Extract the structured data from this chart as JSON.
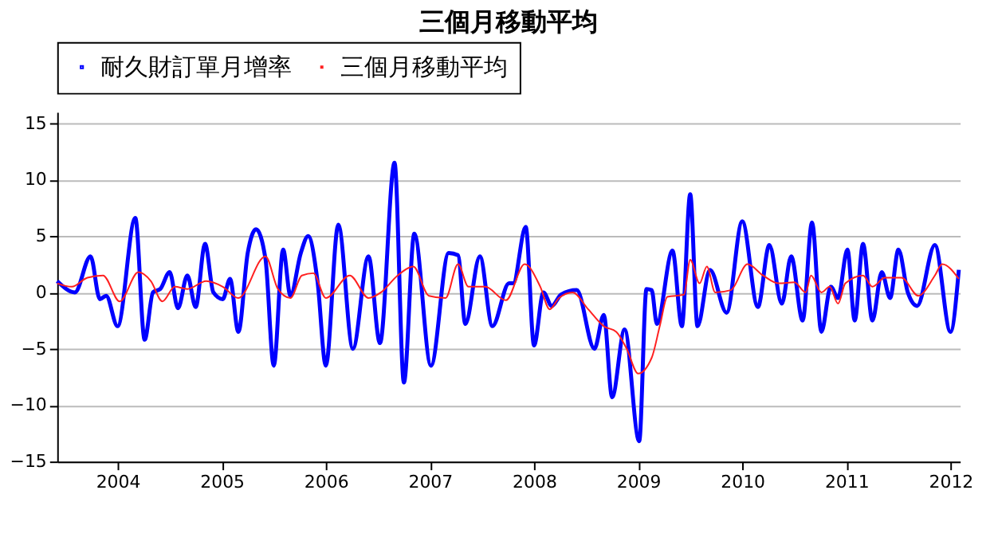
{
  "chart_data": {
    "type": "line",
    "title": "三個月移動平均",
    "legend": "top left",
    "grid": "y",
    "marker": "none",
    "line_style": "solid",
    "xlim": [
      2003.42,
      2012.09
    ],
    "xticks": [
      2004,
      2005,
      2006,
      2007,
      2008,
      2009,
      2010,
      2011,
      2012
    ],
    "ylim": [
      -15,
      16
    ],
    "yticks": [
      -15,
      -10,
      -5,
      0,
      5,
      10,
      15
    ],
    "series": [
      {
        "name": "耐久財訂單月增率",
        "color": "#0000ff",
        "x": [
          2003.42,
          2003.59,
          2003.74,
          2003.83,
          2003.89,
          2004.0,
          2004.17,
          2004.26,
          2004.34,
          2004.41,
          2004.5,
          2004.58,
          2004.67,
          2004.75,
          2004.84,
          2004.92,
          2005.01,
          2005.08,
          2005.16,
          2005.25,
          2005.33,
          2005.42,
          2005.5,
          2005.59,
          2005.66,
          2005.76,
          2005.83,
          2005.92,
          2006.0,
          2006.12,
          2006.26,
          2006.41,
          2006.52,
          2006.66,
          2006.75,
          2006.85,
          2007.01,
          2007.18,
          2007.27,
          2007.34,
          2007.48,
          2007.6,
          2007.76,
          2007.8,
          2007.92,
          2008.0,
          2008.09,
          2008.17,
          2008.26,
          2008.41,
          2008.58,
          2008.67,
          2008.75,
          2008.87,
          2009.01,
          2009.08,
          2009.13,
          2009.18,
          2009.33,
          2009.42,
          2009.5,
          2009.57,
          2009.69,
          2009.85,
          2010.0,
          2010.15,
          2010.26,
          2010.38,
          2010.47,
          2010.58,
          2010.67,
          2010.76,
          2010.85,
          2010.92,
          2011.01,
          2011.08,
          2011.16,
          2011.25,
          2011.34,
          2011.42,
          2011.5,
          2011.59,
          2011.68,
          2011.85,
          2012.0,
          2012.08
        ],
        "values": [
          1.0,
          0,
          3.2,
          -0.6,
          -0.3,
          -3,
          6.6,
          -4.2,
          0,
          0.3,
          1.8,
          -1.4,
          1.5,
          -1.3,
          4.3,
          0,
          -0.6,
          1.2,
          -3.5,
          3.5,
          5.6,
          3,
          -6.5,
          3.8,
          -0.3,
          3.5,
          5,
          1,
          -6.5,
          6,
          -5,
          3.2,
          -4.5,
          11.5,
          -8,
          5.2,
          -6.5,
          3.5,
          3.3,
          -2.8,
          3.2,
          -3,
          0.8,
          0.8,
          5.8,
          -4.7,
          0,
          -1.2,
          -0.2,
          0.2,
          -5,
          -2,
          -9.3,
          -3.3,
          -13.2,
          0.3,
          0.2,
          -2.8,
          3.7,
          -3,
          8.7,
          -3,
          2,
          -1.8,
          6.3,
          -1.3,
          4.2,
          -1,
          3.2,
          -2.5,
          6.2,
          -3.5,
          0.5,
          -0.5,
          3.8,
          -2.5,
          4.3,
          -2.5,
          1.8,
          -0.5,
          3.8,
          0,
          -1.2,
          4.2,
          -3.5,
          2
        ]
      },
      {
        "name": "三個月移動平均",
        "color": "#ff2020",
        "x": [
          2003.42,
          2003.56,
          2003.71,
          2003.86,
          2004.02,
          2004.2,
          2004.32,
          2004.43,
          2004.55,
          2004.67,
          2004.85,
          2005.01,
          2005.16,
          2005.42,
          2005.54,
          2005.66,
          2005.77,
          2005.88,
          2006.0,
          2006.23,
          2006.41,
          2006.53,
          2006.69,
          2006.84,
          2006.99,
          2007.15,
          2007.27,
          2007.37,
          2007.53,
          2007.73,
          2007.91,
          2008.06,
          2008.15,
          2008.24,
          2008.37,
          2008.52,
          2008.67,
          2008.79,
          2008.89,
          2009.0,
          2009.13,
          2009.21,
          2009.28,
          2009.44,
          2009.5,
          2009.59,
          2009.66,
          2009.74,
          2009.89,
          2010.05,
          2010.2,
          2010.35,
          2010.5,
          2010.61,
          2010.66,
          2010.76,
          2010.84,
          2010.92,
          2010.99,
          2011.16,
          2011.25,
          2011.37,
          2011.53,
          2011.69,
          2011.85,
          2011.92,
          2012.08
        ],
        "values": [
          0.8,
          0.5,
          1.3,
          1.5,
          -0.8,
          1.8,
          1,
          -0.8,
          0.5,
          0.3,
          1.0,
          0.5,
          -0.5,
          3.2,
          0.3,
          -0.5,
          1.5,
          1.7,
          -0.5,
          1.5,
          -0.5,
          0,
          1.5,
          2.3,
          -0.3,
          -0.5,
          2.5,
          0.5,
          0.5,
          -0.7,
          2.5,
          0.5,
          -1.5,
          -0.5,
          0,
          -1.5,
          -3,
          -3.5,
          -5,
          -7.2,
          -5.8,
          -2.9,
          -0.4,
          -0.2,
          2.9,
          0.8,
          2.3,
          0,
          0.2,
          2.5,
          1.5,
          0.8,
          0.9,
          0,
          1.5,
          0,
          0.5,
          -1.0,
          0.8,
          1.5,
          0.5,
          1.3,
          1.3,
          -0.3,
          1.5,
          2.5,
          1.2
        ]
      }
    ]
  }
}
